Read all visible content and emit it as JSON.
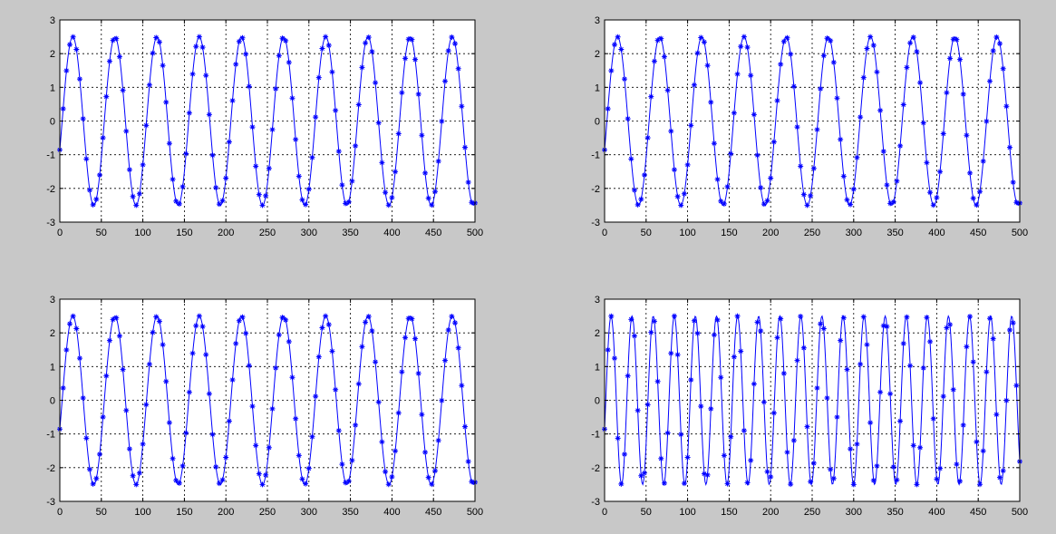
{
  "figure": {
    "background": "#c8c8c8"
  },
  "chart_data": [
    {
      "type": "line",
      "panel": "top-left",
      "x_range": [
        0,
        500
      ],
      "y_range": [
        -3,
        3
      ],
      "x_ticks": [
        0,
        50,
        100,
        150,
        200,
        250,
        300,
        350,
        400,
        450,
        500
      ],
      "y_ticks": [
        -3,
        -2,
        -1,
        0,
        1,
        2,
        3
      ],
      "grid": "dotted",
      "series_color": "#0000ff",
      "marker": "*",
      "signal": {
        "amplitude": 2.5,
        "period": 50.8,
        "phase_deg": -20,
        "samples": 500,
        "sample_step": 4
      }
    },
    {
      "type": "line",
      "panel": "top-right",
      "x_range": [
        0,
        500
      ],
      "y_range": [
        -3,
        3
      ],
      "x_ticks": [
        0,
        50,
        100,
        150,
        200,
        250,
        300,
        350,
        400,
        450,
        500
      ],
      "y_ticks": [
        -3,
        -2,
        -1,
        0,
        1,
        2,
        3
      ],
      "grid": "dotted",
      "series_color": "#0000ff",
      "marker": "*",
      "signal": {
        "amplitude": 2.5,
        "period": 50.8,
        "phase_deg": -20,
        "samples": 500,
        "sample_step": 4
      }
    },
    {
      "type": "line",
      "panel": "bottom-left",
      "x_range": [
        0,
        500
      ],
      "y_range": [
        -3,
        3
      ],
      "x_ticks": [
        0,
        50,
        100,
        150,
        200,
        250,
        300,
        350,
        400,
        450,
        500
      ],
      "y_ticks": [
        -3,
        -2,
        -1,
        0,
        1,
        2,
        3
      ],
      "grid": "dotted",
      "series_color": "#0000ff",
      "marker": "*",
      "signal": {
        "amplitude": 2.5,
        "period": 50.8,
        "phase_deg": -20,
        "samples": 500,
        "sample_step": 4
      }
    },
    {
      "type": "line",
      "panel": "bottom-right",
      "x_range": [
        0,
        500
      ],
      "y_range": [
        -3,
        3
      ],
      "x_ticks": [
        0,
        50,
        100,
        150,
        200,
        250,
        300,
        350,
        400,
        450,
        500
      ],
      "y_ticks": [
        -3,
        -2,
        -1,
        0,
        1,
        2,
        3
      ],
      "grid": "dotted",
      "series_color": "#0000ff",
      "marker": "*",
      "signal": {
        "amplitude": 2.5,
        "period": 25.4,
        "phase_deg": -20,
        "samples": 500,
        "sample_step": 4
      }
    }
  ]
}
